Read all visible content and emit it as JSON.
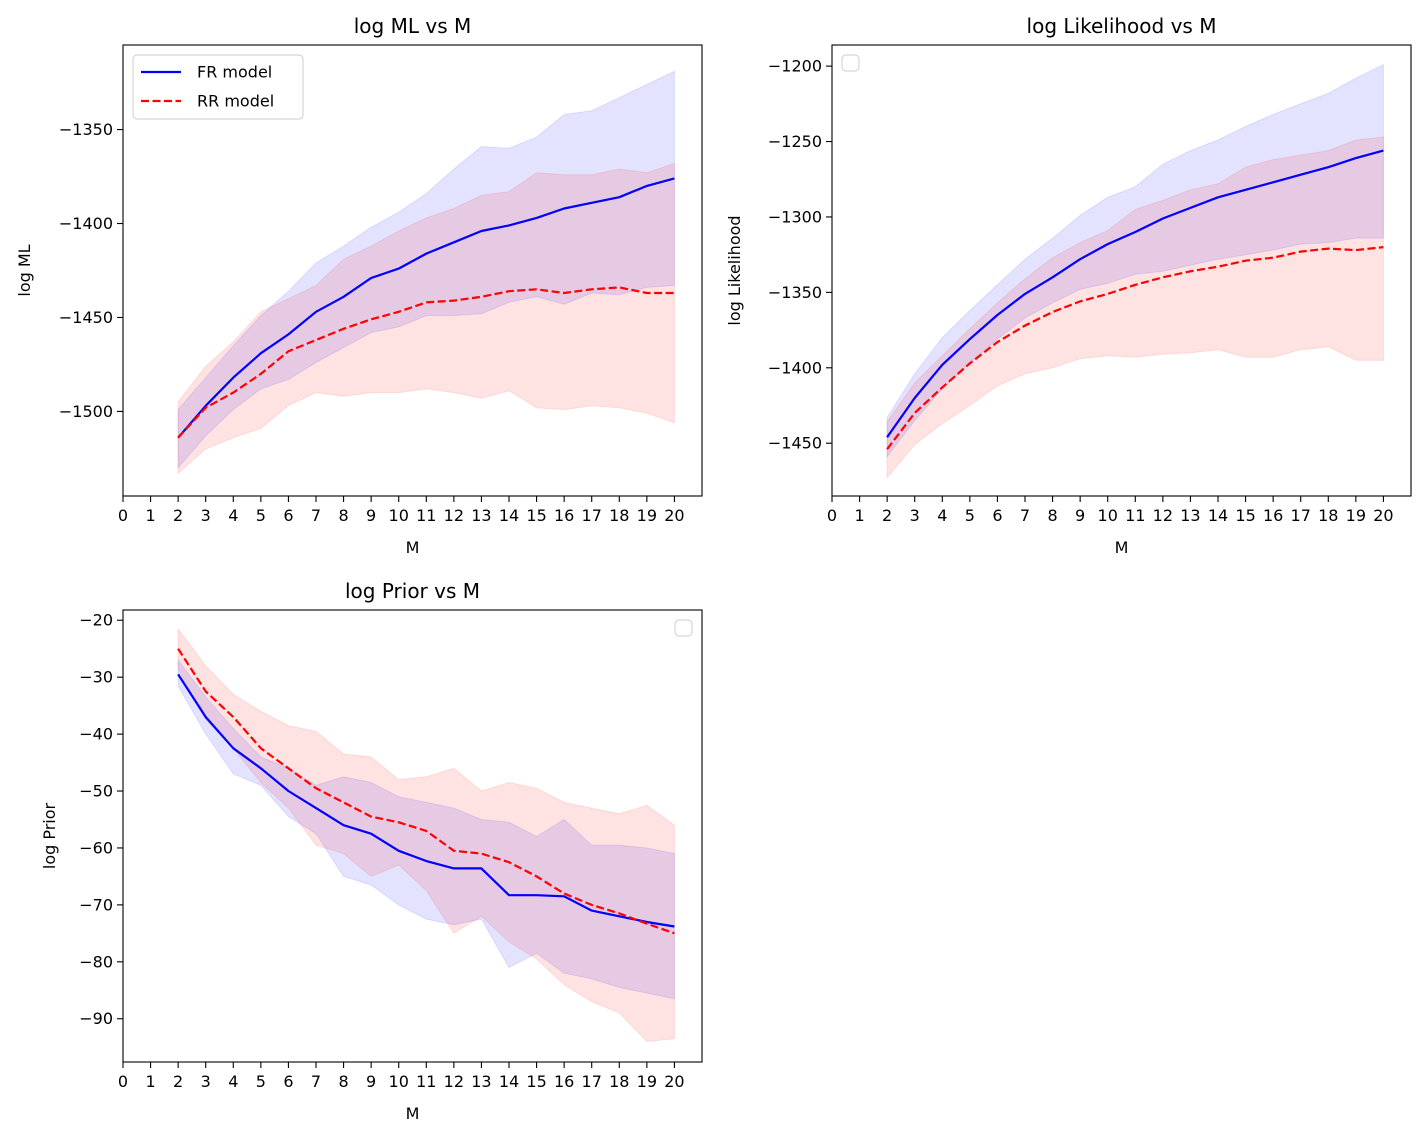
{
  "chart_data": [
    {
      "type": "line",
      "title": "log ML vs M",
      "xlabel": "M",
      "ylabel": "log ML",
      "xlim": [
        0,
        21
      ],
      "ylim": [
        -1545,
        -1305
      ],
      "xticks": [
        0,
        1,
        2,
        3,
        4,
        5,
        6,
        7,
        8,
        9,
        10,
        11,
        12,
        13,
        14,
        15,
        16,
        17,
        18,
        19,
        20
      ],
      "yticks": [
        -1350,
        -1400,
        -1450,
        -1500
      ],
      "ytick_labels": [
        "−1350",
        "−1400",
        "−1450",
        "−1500"
      ],
      "legend": {
        "position": "top-left",
        "entries": [
          "FR model",
          "RR model"
        ]
      },
      "x": [
        2,
        3,
        4,
        5,
        6,
        7,
        8,
        9,
        10,
        11,
        12,
        13,
        14,
        15,
        16,
        17,
        18,
        19,
        20
      ],
      "series": [
        {
          "name": "FR model",
          "color": "#0000ff",
          "style": "solid",
          "values": [
            -1514,
            -1497,
            -1482,
            -1469,
            -1459,
            -1447,
            -1439,
            -1429,
            -1424,
            -1416,
            -1410,
            -1404,
            -1401,
            -1397,
            -1392,
            -1389,
            -1386,
            -1380,
            -1376
          ],
          "band_upper": [
            -1499,
            -1482,
            -1465,
            -1449,
            -1436,
            -1421,
            -1412,
            -1402,
            -1394,
            -1384,
            -1371,
            -1359,
            -1360,
            -1354,
            -1342,
            -1340,
            -1333,
            -1326,
            -1319
          ],
          "band_lower": [
            -1530,
            -1513,
            -1499,
            -1488,
            -1483,
            -1474,
            -1466,
            -1458,
            -1455,
            -1449,
            -1449,
            -1448,
            -1442,
            -1439,
            -1443,
            -1437,
            -1438,
            -1434,
            -1433
          ]
        },
        {
          "name": "RR model",
          "color": "#ff0000",
          "style": "dashed",
          "values": [
            -1514,
            -1498,
            -1490,
            -1480,
            -1468,
            -1462,
            -1456,
            -1451,
            -1447,
            -1442,
            -1441,
            -1439,
            -1436,
            -1435,
            -1437,
            -1435,
            -1434,
            -1437,
            -1437
          ],
          "band_upper": [
            -1495,
            -1476,
            -1463,
            -1447,
            -1440,
            -1433,
            -1419,
            -1412,
            -1404,
            -1397,
            -1392,
            -1385,
            -1383,
            -1373,
            -1374,
            -1374,
            -1371,
            -1373,
            -1368
          ],
          "band_lower": [
            -1533,
            -1520,
            -1514,
            -1509,
            -1497,
            -1490,
            -1492,
            -1490,
            -1490,
            -1488,
            -1490,
            -1493,
            -1489,
            -1498,
            -1499,
            -1497,
            -1498,
            -1501,
            -1506
          ]
        }
      ]
    },
    {
      "type": "line",
      "title": "log Likelihood vs M",
      "xlabel": "M",
      "ylabel": "log Likelihood",
      "xlim": [
        0,
        21
      ],
      "ylim": [
        -1485,
        -1186
      ],
      "xticks": [
        0,
        1,
        2,
        3,
        4,
        5,
        6,
        7,
        8,
        9,
        10,
        11,
        12,
        13,
        14,
        15,
        16,
        17,
        18,
        19,
        20
      ],
      "yticks": [
        -1200,
        -1250,
        -1300,
        -1350,
        -1400,
        -1450
      ],
      "ytick_labels": [
        "−1200",
        "−1250",
        "−1300",
        "−1350",
        "−1400",
        "−1450"
      ],
      "legend": {
        "position": "top-left",
        "entries": []
      },
      "x": [
        2,
        3,
        4,
        5,
        6,
        7,
        8,
        9,
        10,
        11,
        12,
        13,
        14,
        15,
        16,
        17,
        18,
        19,
        20
      ],
      "series": [
        {
          "name": "FR model",
          "color": "#0000ff",
          "style": "solid",
          "values": [
            -1446,
            -1420,
            -1398,
            -1381,
            -1365,
            -1351,
            -1340,
            -1328,
            -1318,
            -1310,
            -1301,
            -1294,
            -1287,
            -1282,
            -1277,
            -1272,
            -1267,
            -1261,
            -1256
          ],
          "band_upper": [
            -1433,
            -1404,
            -1380,
            -1362,
            -1345,
            -1328,
            -1314,
            -1299,
            -1287,
            -1280,
            -1265,
            -1256,
            -1249,
            -1240,
            -1232,
            -1225,
            -1218,
            -1208,
            -1199
          ],
          "band_lower": [
            -1459,
            -1435,
            -1414,
            -1397,
            -1381,
            -1367,
            -1357,
            -1348,
            -1344,
            -1338,
            -1336,
            -1332,
            -1328,
            -1325,
            -1322,
            -1318,
            -1317,
            -1314,
            -1314
          ]
        },
        {
          "name": "RR model",
          "color": "#ff0000",
          "style": "dashed",
          "values": [
            -1454,
            -1430,
            -1413,
            -1397,
            -1383,
            -1372,
            -1363,
            -1356,
            -1351,
            -1345,
            -1340,
            -1336,
            -1333,
            -1329,
            -1327,
            -1323,
            -1321,
            -1322,
            -1320
          ],
          "band_upper": [
            -1436,
            -1410,
            -1392,
            -1374,
            -1357,
            -1341,
            -1327,
            -1317,
            -1309,
            -1295,
            -1289,
            -1282,
            -1278,
            -1267,
            -1262,
            -1259,
            -1256,
            -1249,
            -1247
          ],
          "band_lower": [
            -1473,
            -1451,
            -1437,
            -1425,
            -1412,
            -1404,
            -1400,
            -1394,
            -1392,
            -1393,
            -1391,
            -1390,
            -1388,
            -1393,
            -1393,
            -1388,
            -1386,
            -1395,
            -1395
          ]
        }
      ]
    },
    {
      "type": "line",
      "title": "log Prior vs M",
      "xlabel": "M",
      "ylabel": "log Prior",
      "xlim": [
        0,
        21
      ],
      "ylim": [
        -97.6,
        -18.2
      ],
      "xticks": [
        0,
        1,
        2,
        3,
        4,
        5,
        6,
        7,
        8,
        9,
        10,
        11,
        12,
        13,
        14,
        15,
        16,
        17,
        18,
        19,
        20
      ],
      "yticks": [
        -20,
        -30,
        -40,
        -50,
        -60,
        -70,
        -80,
        -90
      ],
      "ytick_labels": [
        "−20",
        "−30",
        "−40",
        "−50",
        "−60",
        "−70",
        "−80",
        "−90"
      ],
      "legend": {
        "position": "top-right",
        "entries": []
      },
      "x": [
        2,
        3,
        4,
        5,
        6,
        7,
        8,
        9,
        10,
        11,
        12,
        13,
        14,
        15,
        16,
        17,
        18,
        19,
        20
      ],
      "series": [
        {
          "name": "FR model",
          "color": "#0000ff",
          "style": "solid",
          "values": [
            -29.5,
            -37,
            -42.5,
            -46,
            -50,
            -53,
            -56,
            -57.5,
            -60.5,
            -62.3,
            -63.6,
            -63.6,
            -68.3,
            -68.3,
            -68.5,
            -71,
            -72,
            -73,
            -73.8
          ],
          "band_upper": [
            -27,
            -33.5,
            -39,
            -44,
            -46,
            -49,
            -47.5,
            -48.5,
            -51,
            -52,
            -53,
            -55,
            -55.5,
            -58,
            -55,
            -59.5,
            -59.5,
            -60,
            -61
          ],
          "band_lower": [
            -31.5,
            -40,
            -47,
            -49,
            -54.5,
            -57.5,
            -65,
            -66.5,
            -70,
            -72.5,
            -73.5,
            -72.5,
            -81,
            -78.5,
            -82,
            -83,
            -84.5,
            -85.5,
            -86.5
          ]
        },
        {
          "name": "RR model",
          "color": "#ff0000",
          "style": "dashed",
          "values": [
            -25,
            -32.5,
            -37,
            -42.5,
            -46,
            -49.5,
            -52,
            -54.5,
            -55.5,
            -57,
            -60.5,
            -61,
            -62.5,
            -65,
            -68,
            -70,
            -71.5,
            -73.3,
            -75
          ],
          "band_upper": [
            -21.5,
            -28,
            -33,
            -36,
            -38.5,
            -39.5,
            -43.5,
            -44,
            -48,
            -47.5,
            -46,
            -50,
            -48.5,
            -49.5,
            -52,
            -53,
            -54,
            -52.5,
            -56
          ],
          "band_lower": [
            -28.5,
            -37.5,
            -42.5,
            -48.5,
            -53,
            -59.5,
            -61,
            -65,
            -63,
            -67.5,
            -75,
            -72,
            -76.5,
            -79.5,
            -84,
            -87,
            -89,
            -94,
            -93.5
          ]
        }
      ]
    }
  ]
}
